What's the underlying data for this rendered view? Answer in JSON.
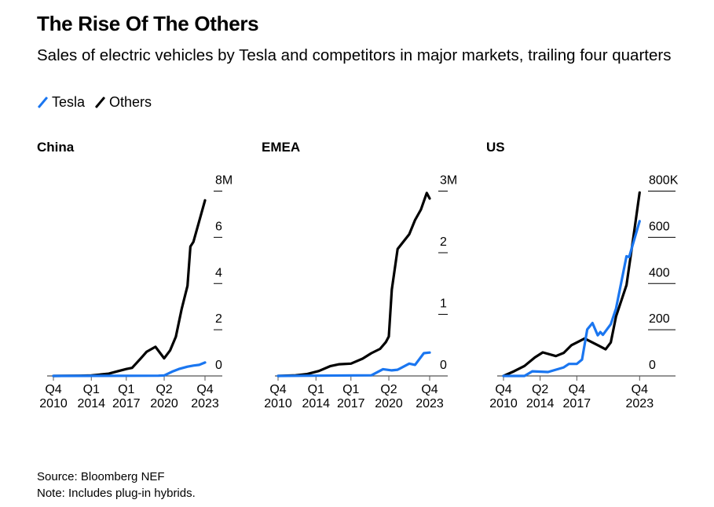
{
  "title": "The Rise Of The Others",
  "subtitle": "Sales of electric vehicles by Tesla and competitors in major markets, trailing four quarters",
  "legend": [
    {
      "label": "Tesla",
      "color": "#1a76f0"
    },
    {
      "label": "Others",
      "color": "#000000"
    }
  ],
  "footer": {
    "source": "Source: Bloomberg NEF",
    "note": "Note: Includes plug-in hybrids."
  },
  "chart_data": [
    {
      "type": "line",
      "title": "China",
      "y_ticks": [
        "0",
        "2",
        "4",
        "6",
        "8M"
      ],
      "y_tick_values": [
        0,
        2,
        4,
        6,
        8
      ],
      "ylim": [
        0,
        8
      ],
      "y_unit": "M",
      "x_ticks": [
        [
          "Q4",
          "2010"
        ],
        [
          "Q1",
          "2014"
        ],
        [
          "Q1",
          "2017"
        ],
        [
          "Q2",
          "2020"
        ],
        [
          "Q4",
          "2023"
        ]
      ],
      "x_tick_values": [
        "2010-Q4",
        "2014-Q1",
        "2017-Q1",
        "2020-Q2",
        "2023-Q4"
      ],
      "xlim": [
        "2010-Q4",
        "2023-Q4"
      ],
      "series": [
        {
          "name": "Others",
          "color": "#000000",
          "points": [
            [
              "2010-Q4",
              0
            ],
            [
              "2013-Q1",
              0.01
            ],
            [
              "2014-Q1",
              0.02
            ],
            [
              "2015-Q3",
              0.1
            ],
            [
              "2016-Q2",
              0.2
            ],
            [
              "2017-Q1",
              0.3
            ],
            [
              "2017-Q3",
              0.35
            ],
            [
              "2018-Q2",
              0.76
            ],
            [
              "2018-Q4",
              1.05
            ],
            [
              "2019-Q3",
              1.26
            ],
            [
              "2020-Q2",
              0.76
            ],
            [
              "2020-Q4",
              1.1
            ],
            [
              "2021-Q2",
              1.7
            ],
            [
              "2021-Q4",
              2.9
            ],
            [
              "2022-Q2",
              3.9
            ],
            [
              "2022-Q3",
              5.6
            ],
            [
              "2022-Q4",
              5.8
            ],
            [
              "2023-Q2",
              6.7
            ],
            [
              "2023-Q4",
              7.6
            ]
          ]
        },
        {
          "name": "Tesla",
          "color": "#1a76f0",
          "points": [
            [
              "2010-Q4",
              0
            ],
            [
              "2019-Q4",
              0.01
            ],
            [
              "2020-Q2",
              0.02
            ],
            [
              "2021-Q1",
              0.2
            ],
            [
              "2021-Q3",
              0.3
            ],
            [
              "2022-Q2",
              0.4
            ],
            [
              "2022-Q4",
              0.45
            ],
            [
              "2023-Q2",
              0.48
            ],
            [
              "2023-Q4",
              0.58
            ]
          ]
        }
      ]
    },
    {
      "type": "line",
      "title": "EMEA",
      "y_ticks": [
        "0",
        "1",
        "2",
        "3M"
      ],
      "y_tick_values": [
        0,
        1,
        2,
        3
      ],
      "ylim": [
        0,
        3
      ],
      "y_unit": "M",
      "x_ticks": [
        [
          "Q4",
          "2010"
        ],
        [
          "Q1",
          "2014"
        ],
        [
          "Q1",
          "2017"
        ],
        [
          "Q2",
          "2020"
        ],
        [
          "Q4",
          "2023"
        ]
      ],
      "x_tick_values": [
        "2010-Q4",
        "2014-Q1",
        "2017-Q1",
        "2020-Q2",
        "2023-Q4"
      ],
      "xlim": [
        "2010-Q4",
        "2023-Q4"
      ],
      "series": [
        {
          "name": "Others",
          "color": "#000000",
          "points": [
            [
              "2010-Q4",
              0
            ],
            [
              "2012-Q2",
              0.01
            ],
            [
              "2013-Q2",
              0.03
            ],
            [
              "2014-Q2",
              0.08
            ],
            [
              "2015-Q2",
              0.16
            ],
            [
              "2016-Q1",
              0.19
            ],
            [
              "2017-Q1",
              0.2
            ],
            [
              "2018-Q1",
              0.28
            ],
            [
              "2018-Q4",
              0.37
            ],
            [
              "2019-Q3",
              0.44
            ],
            [
              "2020-Q1",
              0.55
            ],
            [
              "2020-Q2",
              0.64
            ],
            [
              "2020-Q3",
              1.4
            ],
            [
              "2021-Q1",
              2.06
            ],
            [
              "2022-Q1",
              2.3
            ],
            [
              "2022-Q3",
              2.53
            ],
            [
              "2023-Q1",
              2.7
            ],
            [
              "2023-Q3",
              2.97
            ],
            [
              "2023-Q4",
              2.88
            ]
          ]
        },
        {
          "name": "Tesla",
          "color": "#1a76f0",
          "points": [
            [
              "2010-Q4",
              0
            ],
            [
              "2018-Q4",
              0.01
            ],
            [
              "2019-Q4",
              0.11
            ],
            [
              "2020-Q3",
              0.09
            ],
            [
              "2021-Q1",
              0.1
            ],
            [
              "2022-Q1",
              0.2
            ],
            [
              "2022-Q3",
              0.18
            ],
            [
              "2023-Q2",
              0.37
            ],
            [
              "2023-Q4",
              0.38
            ]
          ]
        }
      ]
    },
    {
      "type": "line",
      "title": "US",
      "y_ticks": [
        "0",
        "200",
        "400",
        "600",
        "800K"
      ],
      "y_tick_values": [
        0,
        200,
        400,
        600,
        800
      ],
      "ylim": [
        0,
        800
      ],
      "y_unit": "K",
      "x_ticks": [
        [
          "Q4",
          "2010"
        ],
        [
          "Q2",
          "2014"
        ],
        [
          "Q4",
          "2017"
        ],
        [
          "Q4",
          "2023"
        ]
      ],
      "x_tick_values": [
        "2010-Q4",
        "2014-Q2",
        "2017-Q4",
        "2023-Q4"
      ],
      "xlim": [
        "2010-Q4",
        "2026-Q4"
      ],
      "series": [
        {
          "name": "Others",
          "color": "#000000",
          "points": [
            [
              "2010-Q4",
              0
            ],
            [
              "2011-Q4",
              20
            ],
            [
              "2012-Q4",
              43
            ],
            [
              "2013-Q4",
              80
            ],
            [
              "2014-Q3",
              102
            ],
            [
              "2015-Q4",
              86
            ],
            [
              "2016-Q3",
              100
            ],
            [
              "2017-Q2",
              133
            ],
            [
              "2018-Q3",
              162
            ],
            [
              "2019-Q4",
              133
            ],
            [
              "2020-Q3",
              115
            ],
            [
              "2021-Q1",
              145
            ],
            [
              "2021-Q3",
              258
            ],
            [
              "2022-Q3",
              393
            ],
            [
              "2023-Q2",
              630
            ],
            [
              "2023-Q4",
              794
            ]
          ]
        },
        {
          "name": "Tesla",
          "color": "#1a76f0",
          "points": [
            [
              "2010-Q4",
              0
            ],
            [
              "2012-Q4",
              0
            ],
            [
              "2013-Q3",
              20
            ],
            [
              "2015-Q1",
              17
            ],
            [
              "2016-Q3",
              37
            ],
            [
              "2017-Q1",
              52
            ],
            [
              "2017-Q4",
              52
            ],
            [
              "2018-Q2",
              71
            ],
            [
              "2018-Q4",
              201
            ],
            [
              "2019-Q2",
              229
            ],
            [
              "2019-Q4",
              176
            ],
            [
              "2020-Q1",
              190
            ],
            [
              "2020-Q2",
              178
            ],
            [
              "2021-Q1",
              224
            ],
            [
              "2021-Q3",
              292
            ],
            [
              "2022-Q3",
              518
            ],
            [
              "2022-Q4",
              515
            ],
            [
              "2023-Q4",
              670
            ]
          ]
        }
      ]
    }
  ]
}
